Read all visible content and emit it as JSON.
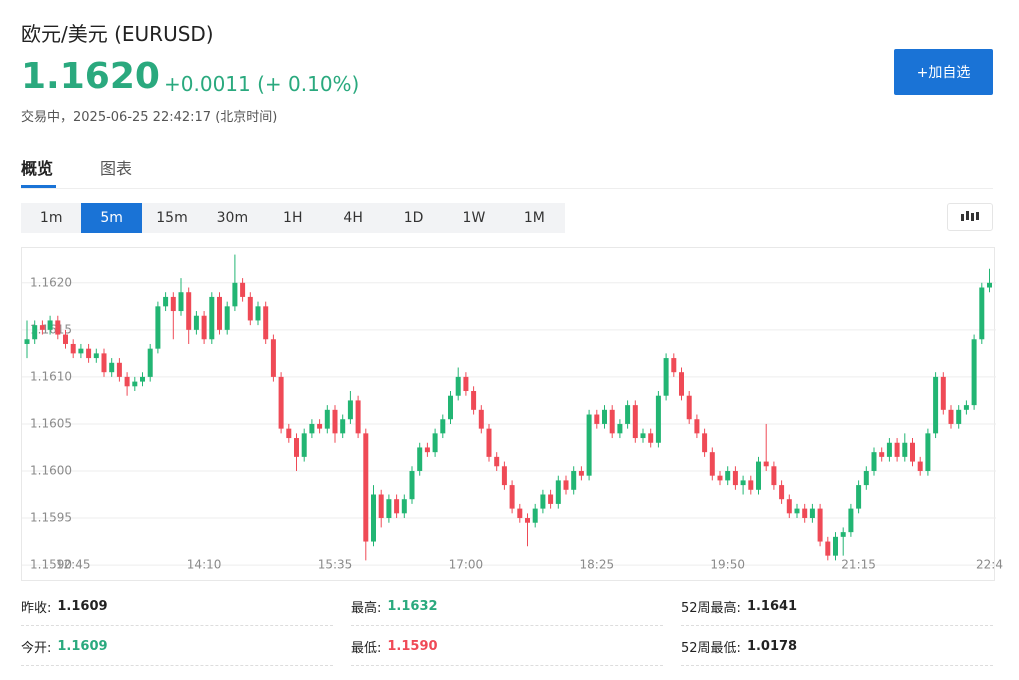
{
  "header": {
    "title": "欧元/美元 (EURUSD)",
    "price": "1.1620",
    "change": "+0.0011 (+ 0.10%)",
    "status": "交易中，2025-06-25 22:42:17 (北京时间)",
    "button": "+加自选"
  },
  "tabs": [
    "概览",
    "图表"
  ],
  "intervals": [
    "1m",
    "5m",
    "15m",
    "30m",
    "1H",
    "4H",
    "1D",
    "1W",
    "1M"
  ],
  "chart_data": {
    "type": "candlestick",
    "up_color": "#22b573",
    "down_color": "#ef4a56",
    "grid": true,
    "ylim": [
      1.15882,
      1.16237
    ],
    "yticks": [
      {
        "value": 1.159,
        "label": "1.1590"
      },
      {
        "value": 1.1595,
        "label": "1.1595"
      },
      {
        "value": 1.16,
        "label": "1.1600"
      },
      {
        "value": 1.1605,
        "label": "1.1605"
      },
      {
        "value": 1.161,
        "label": "1.1610"
      },
      {
        "value": 1.1615,
        "label": "1.1615"
      },
      {
        "value": 1.162,
        "label": "1.1620"
      }
    ],
    "xticks": [
      {
        "value": 6,
        "label": "12:45"
      },
      {
        "value": 23,
        "label": "14:10"
      },
      {
        "value": 40,
        "label": "15:35"
      },
      {
        "value": 57,
        "label": "17:00"
      },
      {
        "value": 74,
        "label": "18:25"
      },
      {
        "value": 91,
        "label": "19:50"
      },
      {
        "value": 108,
        "label": "21:15"
      },
      {
        "value": 125,
        "label": "22:4"
      }
    ],
    "candles": [
      [
        1.16135,
        1.1616,
        1.1612,
        1.1614
      ],
      [
        1.1614,
        1.1616,
        1.16135,
        1.16155
      ],
      [
        1.16155,
        1.1616,
        1.16145,
        1.1615
      ],
      [
        1.1615,
        1.16165,
        1.16145,
        1.1616
      ],
      [
        1.1616,
        1.16165,
        1.1614,
        1.16145
      ],
      [
        1.16145,
        1.1615,
        1.1613,
        1.16135
      ],
      [
        1.16135,
        1.1614,
        1.1612,
        1.16125
      ],
      [
        1.16125,
        1.16135,
        1.1612,
        1.1613
      ],
      [
        1.1613,
        1.16135,
        1.16115,
        1.1612
      ],
      [
        1.1612,
        1.1613,
        1.16115,
        1.16125
      ],
      [
        1.16125,
        1.1613,
        1.161,
        1.16105
      ],
      [
        1.16105,
        1.1612,
        1.161,
        1.16115
      ],
      [
        1.16115,
        1.1612,
        1.16095,
        1.161
      ],
      [
        1.161,
        1.16105,
        1.1608,
        1.1609
      ],
      [
        1.1609,
        1.161,
        1.16085,
        1.16095
      ],
      [
        1.16095,
        1.16105,
        1.1609,
        1.161
      ],
      [
        1.161,
        1.16135,
        1.16095,
        1.1613
      ],
      [
        1.1613,
        1.1618,
        1.16125,
        1.16175
      ],
      [
        1.16175,
        1.1619,
        1.1617,
        1.16185
      ],
      [
        1.16185,
        1.1619,
        1.1614,
        1.1617
      ],
      [
        1.1617,
        1.16205,
        1.16165,
        1.1619
      ],
      [
        1.1619,
        1.16195,
        1.16135,
        1.1615
      ],
      [
        1.1615,
        1.1617,
        1.16145,
        1.16165
      ],
      [
        1.16165,
        1.1617,
        1.16135,
        1.1614
      ],
      [
        1.1614,
        1.1619,
        1.16135,
        1.16185
      ],
      [
        1.16185,
        1.1619,
        1.16145,
        1.1615
      ],
      [
        1.1615,
        1.1618,
        1.16145,
        1.16175
      ],
      [
        1.16175,
        1.1623,
        1.1617,
        1.162
      ],
      [
        1.162,
        1.16205,
        1.1618,
        1.16185
      ],
      [
        1.16185,
        1.1619,
        1.16155,
        1.1616
      ],
      [
        1.1616,
        1.1618,
        1.16155,
        1.16175
      ],
      [
        1.16175,
        1.1618,
        1.16135,
        1.1614
      ],
      [
        1.1614,
        1.16145,
        1.16095,
        1.161
      ],
      [
        1.161,
        1.16105,
        1.1604,
        1.16045
      ],
      [
        1.16045,
        1.1605,
        1.1603,
        1.16035
      ],
      [
        1.16035,
        1.1604,
        1.16,
        1.16015
      ],
      [
        1.16015,
        1.16045,
        1.1601,
        1.1604
      ],
      [
        1.1604,
        1.16055,
        1.16035,
        1.1605
      ],
      [
        1.1605,
        1.16055,
        1.1604,
        1.16045
      ],
      [
        1.16045,
        1.1607,
        1.1604,
        1.16065
      ],
      [
        1.16065,
        1.1607,
        1.1603,
        1.1604
      ],
      [
        1.1604,
        1.1606,
        1.16035,
        1.16055
      ],
      [
        1.16055,
        1.16085,
        1.1605,
        1.16075
      ],
      [
        1.16075,
        1.1608,
        1.16035,
        1.1604
      ],
      [
        1.1604,
        1.16045,
        1.15905,
        1.15925
      ],
      [
        1.15925,
        1.15985,
        1.1592,
        1.15975
      ],
      [
        1.15975,
        1.1598,
        1.1594,
        1.1595
      ],
      [
        1.1595,
        1.15975,
        1.15945,
        1.1597
      ],
      [
        1.1597,
        1.15975,
        1.1595,
        1.15955
      ],
      [
        1.15955,
        1.15975,
        1.1595,
        1.1597
      ],
      [
        1.1597,
        1.16005,
        1.15965,
        1.16
      ],
      [
        1.16,
        1.1603,
        1.15995,
        1.16025
      ],
      [
        1.16025,
        1.1603,
        1.16015,
        1.1602
      ],
      [
        1.1602,
        1.16045,
        1.16015,
        1.1604
      ],
      [
        1.1604,
        1.1606,
        1.16035,
        1.16055
      ],
      [
        1.16055,
        1.16085,
        1.1605,
        1.1608
      ],
      [
        1.1608,
        1.1611,
        1.16075,
        1.161
      ],
      [
        1.161,
        1.16105,
        1.1608,
        1.16085
      ],
      [
        1.16085,
        1.1609,
        1.1606,
        1.16065
      ],
      [
        1.16065,
        1.1607,
        1.1604,
        1.16045
      ],
      [
        1.16045,
        1.1605,
        1.1601,
        1.16015
      ],
      [
        1.16015,
        1.1602,
        1.16,
        1.16005
      ],
      [
        1.16005,
        1.1601,
        1.1598,
        1.15985
      ],
      [
        1.15985,
        1.1599,
        1.15955,
        1.1596
      ],
      [
        1.1596,
        1.15965,
        1.15945,
        1.1595
      ],
      [
        1.1595,
        1.15955,
        1.1592,
        1.15945
      ],
      [
        1.15945,
        1.15965,
        1.1594,
        1.1596
      ],
      [
        1.1596,
        1.1598,
        1.15955,
        1.15975
      ],
      [
        1.15975,
        1.1598,
        1.1596,
        1.15965
      ],
      [
        1.15965,
        1.15995,
        1.1596,
        1.1599
      ],
      [
        1.1599,
        1.15995,
        1.15975,
        1.1598
      ],
      [
        1.1598,
        1.16005,
        1.15975,
        1.16
      ],
      [
        1.16,
        1.16005,
        1.1599,
        1.15995
      ],
      [
        1.15995,
        1.16065,
        1.1599,
        1.1606
      ],
      [
        1.1606,
        1.16065,
        1.16045,
        1.1605
      ],
      [
        1.1605,
        1.1607,
        1.16045,
        1.16065
      ],
      [
        1.16065,
        1.1607,
        1.16035,
        1.1604
      ],
      [
        1.1604,
        1.16055,
        1.16035,
        1.1605
      ],
      [
        1.1605,
        1.16075,
        1.16045,
        1.1607
      ],
      [
        1.1607,
        1.16075,
        1.1603,
        1.16035
      ],
      [
        1.16035,
        1.16045,
        1.1603,
        1.1604
      ],
      [
        1.1604,
        1.16045,
        1.16025,
        1.1603
      ],
      [
        1.1603,
        1.16085,
        1.16025,
        1.1608
      ],
      [
        1.1608,
        1.16125,
        1.16075,
        1.1612
      ],
      [
        1.1612,
        1.16125,
        1.161,
        1.16105
      ],
      [
        1.16105,
        1.1611,
        1.16075,
        1.1608
      ],
      [
        1.1608,
        1.16085,
        1.1605,
        1.16055
      ],
      [
        1.16055,
        1.1606,
        1.16035,
        1.1604
      ],
      [
        1.1604,
        1.16045,
        1.16015,
        1.1602
      ],
      [
        1.1602,
        1.16025,
        1.1599,
        1.15995
      ],
      [
        1.15995,
        1.16,
        1.15985,
        1.1599
      ],
      [
        1.1599,
        1.16005,
        1.15985,
        1.16
      ],
      [
        1.16,
        1.16005,
        1.1598,
        1.15985
      ],
      [
        1.15985,
        1.15995,
        1.15975,
        1.1599
      ],
      [
        1.1599,
        1.15995,
        1.15975,
        1.1598
      ],
      [
        1.1598,
        1.16015,
        1.15975,
        1.1601
      ],
      [
        1.1601,
        1.1605,
        1.16,
        1.16005
      ],
      [
        1.16005,
        1.1601,
        1.1598,
        1.15985
      ],
      [
        1.15985,
        1.1599,
        1.15965,
        1.1597
      ],
      [
        1.1597,
        1.15975,
        1.1595,
        1.15955
      ],
      [
        1.15955,
        1.15965,
        1.1595,
        1.1596
      ],
      [
        1.1596,
        1.15965,
        1.15945,
        1.1595
      ],
      [
        1.1595,
        1.15965,
        1.15945,
        1.1596
      ],
      [
        1.1596,
        1.15965,
        1.1592,
        1.15925
      ],
      [
        1.15925,
        1.1593,
        1.15905,
        1.1591
      ],
      [
        1.1591,
        1.15935,
        1.15905,
        1.1593
      ],
      [
        1.1593,
        1.1594,
        1.1591,
        1.15935
      ],
      [
        1.15935,
        1.15965,
        1.1593,
        1.1596
      ],
      [
        1.1596,
        1.1599,
        1.15955,
        1.15985
      ],
      [
        1.15985,
        1.16005,
        1.1598,
        1.16
      ],
      [
        1.16,
        1.16025,
        1.15995,
        1.1602
      ],
      [
        1.1602,
        1.16025,
        1.1601,
        1.16015
      ],
      [
        1.16015,
        1.16035,
        1.1601,
        1.1603
      ],
      [
        1.1603,
        1.16035,
        1.1601,
        1.16015
      ],
      [
        1.16015,
        1.1604,
        1.1601,
        1.1603
      ],
      [
        1.1603,
        1.16035,
        1.16005,
        1.1601
      ],
      [
        1.1601,
        1.16015,
        1.15995,
        1.16
      ],
      [
        1.16,
        1.16045,
        1.15995,
        1.1604
      ],
      [
        1.1604,
        1.16105,
        1.16035,
        1.161
      ],
      [
        1.161,
        1.16105,
        1.1606,
        1.16065
      ],
      [
        1.16065,
        1.1607,
        1.16045,
        1.1605
      ],
      [
        1.1605,
        1.1607,
        1.16045,
        1.16065
      ],
      [
        1.16065,
        1.16075,
        1.1606,
        1.1607
      ],
      [
        1.1607,
        1.16145,
        1.16065,
        1.1614
      ],
      [
        1.1614,
        1.162,
        1.16135,
        1.16195
      ],
      [
        1.16195,
        1.16215,
        1.1619,
        1.162
      ]
    ]
  },
  "stats": [
    [
      {
        "label": "昨收:",
        "value": "1.1609"
      },
      {
        "label": "最高:",
        "value": "1.1632"
      },
      {
        "label": "52周最高:",
        "value": "1.1641"
      }
    ],
    [
      {
        "label": "今开:",
        "value": "1.1609"
      },
      {
        "label": "最低:",
        "value": "1.1590"
      },
      {
        "label": "52周最低:",
        "value": "1.0178"
      }
    ]
  ]
}
